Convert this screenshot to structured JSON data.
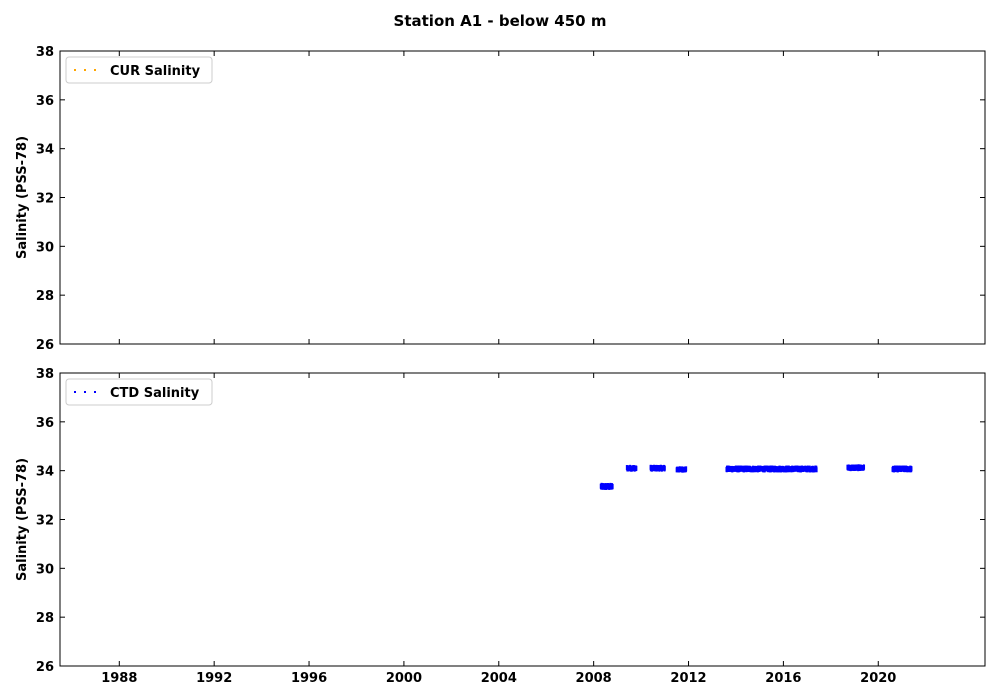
{
  "figure": {
    "title": "Station A1 - below 450 m"
  },
  "chart_data": [
    {
      "type": "scatter",
      "panel": "top",
      "title": "",
      "xlabel": "",
      "ylabel": "Salinity (PSS-78)",
      "ylim": [
        26,
        38
      ],
      "yticks": [
        "26",
        "28",
        "30",
        "32",
        "34",
        "36",
        "38"
      ],
      "xlim": [
        1985.5,
        2024.5
      ],
      "xticks": [
        "1988",
        "1992",
        "1996",
        "2000",
        "2004",
        "2008",
        "2012",
        "2016",
        "2020"
      ],
      "show_xtick_labels": false,
      "grid": false,
      "legend_position": "top-left",
      "series": [
        {
          "name": "CUR Salinity",
          "color": "#ffa500",
          "marker": "dot",
          "segments": []
        }
      ]
    },
    {
      "type": "scatter",
      "panel": "bottom",
      "title": "",
      "xlabel": "",
      "ylabel": "Salinity (PSS-78)",
      "ylim": [
        26,
        38
      ],
      "yticks": [
        "26",
        "28",
        "30",
        "32",
        "34",
        "36",
        "38"
      ],
      "xlim": [
        1985.5,
        2024.5
      ],
      "xticks": [
        "1988",
        "1992",
        "1996",
        "2000",
        "2004",
        "2008",
        "2012",
        "2016",
        "2020"
      ],
      "show_xtick_labels": true,
      "grid": false,
      "legend_position": "top-left",
      "series": [
        {
          "name": "CTD Salinity",
          "color": "#0000ff",
          "marker": "dot",
          "segments": [
            {
              "x_start": 2008.3,
              "x_end": 2008.8,
              "y_mean": 33.35,
              "y_spread": 0.1
            },
            {
              "x_start": 2009.4,
              "x_end": 2009.8,
              "y_mean": 34.1,
              "y_spread": 0.08
            },
            {
              "x_start": 2010.4,
              "x_end": 2011.0,
              "y_mean": 34.1,
              "y_spread": 0.08
            },
            {
              "x_start": 2011.5,
              "x_end": 2011.9,
              "y_mean": 34.05,
              "y_spread": 0.06
            },
            {
              "x_start": 2013.6,
              "x_end": 2017.4,
              "y_mean": 34.07,
              "y_spread": 0.08
            },
            {
              "x_start": 2018.7,
              "x_end": 2019.4,
              "y_mean": 34.12,
              "y_spread": 0.08
            },
            {
              "x_start": 2020.6,
              "x_end": 2021.4,
              "y_mean": 34.07,
              "y_spread": 0.08
            }
          ]
        }
      ]
    }
  ]
}
